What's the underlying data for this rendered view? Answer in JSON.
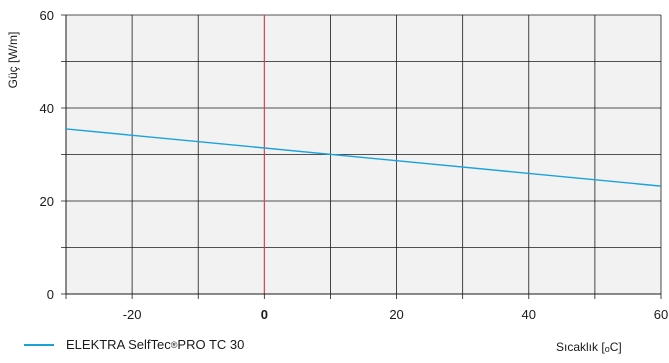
{
  "chart_data": {
    "type": "line",
    "title": "",
    "xlabel_prefix": "Sıcaklık [",
    "xlabel_sub": "o",
    "xlabel_suffix": "C]",
    "ylabel": "Güç [W/m]",
    "xlim": [
      -30,
      60
    ],
    "ylim": [
      0,
      60
    ],
    "x_ticks": [
      -20,
      0,
      20,
      40,
      60
    ],
    "y_ticks": [
      0,
      20,
      40,
      60
    ],
    "x_grid_step": 10,
    "y_grid_step": 10,
    "grid": true,
    "reference_line_x": 0,
    "reference_line_color": "#e8453c",
    "legend_position": "bottom-left",
    "series": [
      {
        "name_prefix": "ELEKTRA SelfTec",
        "name_mark": "®",
        "name_suffix": "PRO TC 30",
        "color": "#1ba3d9",
        "x": [
          -30,
          60
        ],
        "y": [
          35.5,
          23.2
        ]
      }
    ]
  }
}
